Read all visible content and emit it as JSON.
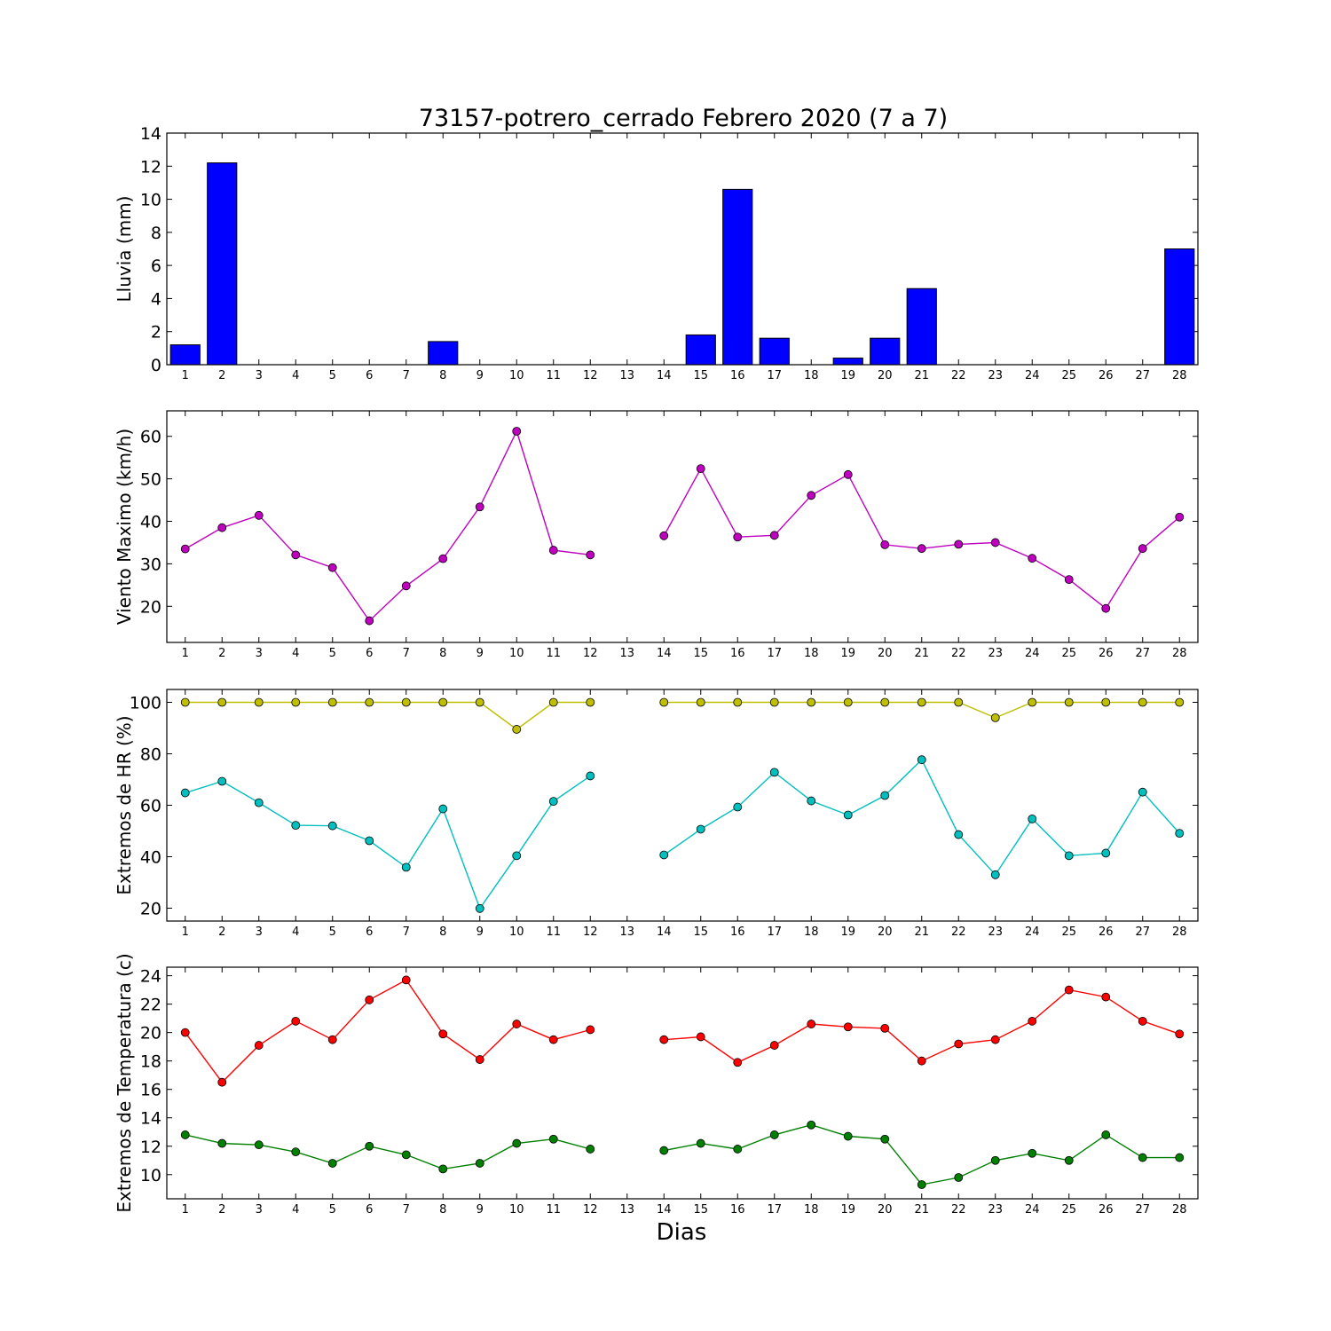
{
  "title": "73157-potrero_cerrado Febrero 2020  (7 a 7)",
  "xlabel": "Dias",
  "chart_data": [
    {
      "type": "bar",
      "ylabel": "Lluvia (mm)",
      "ylim": [
        0,
        14
      ],
      "yticks": [
        0,
        2,
        4,
        6,
        8,
        10,
        12,
        14
      ],
      "x": [
        1,
        2,
        3,
        4,
        5,
        6,
        7,
        8,
        9,
        10,
        11,
        12,
        13,
        14,
        15,
        16,
        17,
        18,
        19,
        20,
        21,
        22,
        23,
        24,
        25,
        26,
        27,
        28
      ],
      "values": [
        1.2,
        12.2,
        0,
        0,
        0,
        0,
        0,
        1.4,
        0,
        0,
        0,
        0,
        0,
        0,
        1.8,
        10.6,
        1.6,
        0,
        0.4,
        1.6,
        4.6,
        0,
        0,
        0,
        0,
        0,
        0,
        7.0
      ],
      "colors": {
        "bar": "#0000ff"
      }
    },
    {
      "type": "line",
      "ylabel": "Viento Maximo (km/h)",
      "ylim": [
        11.5,
        66
      ],
      "yticks": [
        20,
        30,
        40,
        50,
        60
      ],
      "x": [
        1,
        2,
        3,
        4,
        5,
        6,
        7,
        8,
        9,
        10,
        11,
        12,
        13,
        14,
        15,
        16,
        17,
        18,
        19,
        20,
        21,
        22,
        23,
        24,
        25,
        26,
        27,
        28
      ],
      "series": [
        {
          "values": [
            33.5,
            38.5,
            41.4,
            32.1,
            29.1,
            16.6,
            24.8,
            31.2,
            43.4,
            61.2,
            33.2,
            32.1,
            null,
            36.6,
            52.4,
            36.3,
            36.7,
            46.1,
            51.0,
            34.5,
            33.6,
            34.6,
            35.0,
            31.3,
            26.3,
            19.5,
            33.6,
            41.0
          ],
          "color": "#bf00bf"
        }
      ]
    },
    {
      "type": "line",
      "ylabel": "Extremos de HR (%)",
      "ylim": [
        15,
        105
      ],
      "yticks": [
        20,
        40,
        60,
        80,
        100
      ],
      "x": [
        1,
        2,
        3,
        4,
        5,
        6,
        7,
        8,
        9,
        10,
        11,
        12,
        13,
        14,
        15,
        16,
        17,
        18,
        19,
        20,
        21,
        22,
        23,
        24,
        25,
        26,
        27,
        28
      ],
      "series": [
        {
          "values": [
            100,
            100,
            100,
            100,
            100,
            100,
            100,
            100,
            100,
            89.5,
            100,
            100,
            null,
            100,
            100,
            100,
            100,
            100,
            100,
            100,
            100,
            100,
            94,
            100,
            100,
            100,
            100,
            100
          ],
          "color": "#bfbf00"
        },
        {
          "values": [
            64.8,
            69.3,
            61.0,
            52.2,
            52.0,
            46.2,
            35.9,
            58.6,
            19.9,
            40.4,
            61.5,
            71.4,
            null,
            40.7,
            50.7,
            59.3,
            72.8,
            61.7,
            56.2,
            63.8,
            77.7,
            48.6,
            33.0,
            54.7,
            40.4,
            41.4,
            65.1,
            49.1
          ],
          "color": "#00bfbf"
        }
      ]
    },
    {
      "type": "line",
      "ylabel": "Extremos de Temperatura (c)",
      "ylim": [
        8.3,
        24.6
      ],
      "yticks": [
        10,
        12,
        14,
        16,
        18,
        20,
        22,
        24
      ],
      "x": [
        1,
        2,
        3,
        4,
        5,
        6,
        7,
        8,
        9,
        10,
        11,
        12,
        13,
        14,
        15,
        16,
        17,
        18,
        19,
        20,
        21,
        22,
        23,
        24,
        25,
        26,
        27,
        28
      ],
      "series": [
        {
          "values": [
            20.0,
            16.5,
            19.1,
            20.8,
            19.5,
            22.3,
            23.7,
            19.9,
            18.1,
            20.6,
            19.5,
            20.2,
            null,
            19.5,
            19.7,
            17.9,
            19.1,
            20.6,
            20.4,
            20.3,
            18.0,
            19.2,
            19.5,
            20.8,
            23.0,
            22.5,
            20.8,
            19.9
          ],
          "color": "#ff0000"
        },
        {
          "values": [
            12.8,
            12.2,
            12.1,
            11.6,
            10.8,
            12.0,
            11.4,
            10.4,
            10.8,
            12.2,
            12.5,
            11.8,
            null,
            11.7,
            12.2,
            11.8,
            12.8,
            13.5,
            12.7,
            12.5,
            9.3,
            9.8,
            11.0,
            11.5,
            11.0,
            12.8,
            11.2,
            11.2
          ],
          "color": "#008000"
        }
      ]
    }
  ],
  "xticks": [
    "1",
    "2",
    "3",
    "4",
    "5",
    "6",
    "7",
    "8",
    "9",
    "10",
    "11",
    "12",
    "13",
    "14",
    "15",
    "16",
    "17",
    "18",
    "19",
    "20",
    "21",
    "22",
    "23",
    "24",
    "25",
    "26",
    "27",
    "28"
  ]
}
